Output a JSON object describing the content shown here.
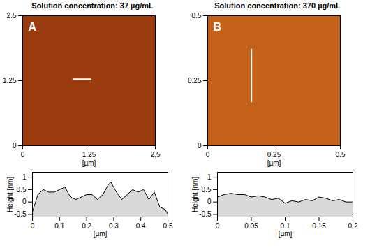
{
  "chart_data": [
    {
      "type": "image",
      "title": "Solution concentration: 37 µg/mL",
      "panel_label": "A",
      "xlabel": "[µm]",
      "xlim": [
        0,
        2.5
      ],
      "xticks": [
        0,
        1.25,
        2.5
      ],
      "ylim": [
        0,
        2.5
      ],
      "yticks": [
        0,
        1.25,
        2.5
      ],
      "color": "#9a3c10",
      "profile_line": {
        "x": [
          0.95,
          1.28
        ],
        "y": [
          1.28,
          1.28
        ]
      }
    },
    {
      "type": "image",
      "title": "Solution concentration: 370 µg/mL",
      "panel_label": "B",
      "xlabel": "[µm]",
      "xlim": [
        0,
        0.5
      ],
      "xticks": [
        0,
        0.25,
        0.5
      ],
      "ylim": [
        0,
        0.5
      ],
      "yticks": [
        0,
        0.25,
        0.5
      ],
      "color": "#c4621c",
      "profile_line": {
        "x": [
          0.165,
          0.165
        ],
        "y": [
          0.17,
          0.37
        ]
      }
    },
    {
      "type": "area",
      "xlabel": "[µm]",
      "ylabel": "Height [nm]",
      "color": "#d9d9d9",
      "xlim": [
        0,
        0.5
      ],
      "xticks": [
        0,
        0.1,
        0.2,
        0.3,
        0.4,
        0.5
      ],
      "ylim": [
        -0.6,
        1.2
      ],
      "yticks": [
        -0.5,
        0,
        0.5,
        1
      ],
      "x": [
        0,
        0.02,
        0.04,
        0.06,
        0.08,
        0.1,
        0.12,
        0.14,
        0.16,
        0.18,
        0.2,
        0.22,
        0.24,
        0.26,
        0.28,
        0.29,
        0.31,
        0.33,
        0.35,
        0.37,
        0.39,
        0.41,
        0.43,
        0.45,
        0.47,
        0.49,
        0.5
      ],
      "values": [
        -0.4,
        0.3,
        0.5,
        0.4,
        0.4,
        0.5,
        0.6,
        0.2,
        0.1,
        0.2,
        0.3,
        0.3,
        0.1,
        0.3,
        0.7,
        0.8,
        0.4,
        0.1,
        0.3,
        0.5,
        0.4,
        0.5,
        0.1,
        0.4,
        -0.2,
        -0.3,
        -0.5
      ]
    },
    {
      "type": "area",
      "xlabel": "[µm]",
      "ylabel": "Height [nm]",
      "color": "#d9d9d9",
      "xlim": [
        0,
        0.2
      ],
      "xticks": [
        0,
        0.05,
        0.1,
        0.15,
        0.2
      ],
      "ylim": [
        -0.6,
        1.2
      ],
      "yticks": [
        -0.5,
        0,
        0.5,
        1
      ],
      "x": [
        0,
        0.01,
        0.02,
        0.03,
        0.04,
        0.05,
        0.06,
        0.07,
        0.08,
        0.09,
        0.1,
        0.11,
        0.12,
        0.13,
        0.14,
        0.15,
        0.16,
        0.17,
        0.18,
        0.19,
        0.2
      ],
      "values": [
        0.2,
        0.3,
        0.35,
        0.3,
        0.3,
        0.2,
        0.25,
        0.2,
        0.1,
        0.15,
        -0.05,
        0.05,
        0.0,
        0.1,
        0.05,
        0.2,
        0.15,
        0.05,
        0.1,
        0.0,
        0.0
      ]
    }
  ]
}
